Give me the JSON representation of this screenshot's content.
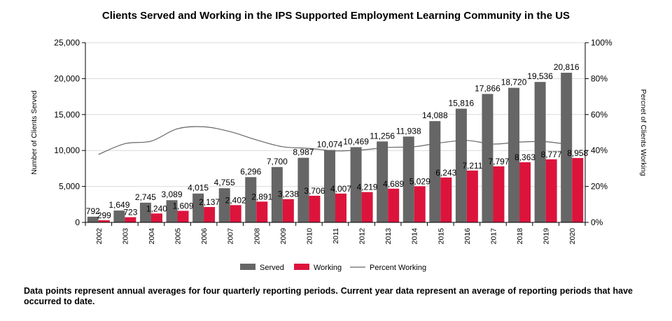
{
  "chart_data": {
    "type": "bar",
    "title": "Clients Served and Working in the IPS Supported Employment Learning Community in the US",
    "ylabel": "Number of Clients Served",
    "y2label": "Percnet of Clients Working",
    "ylim": [
      0,
      25000
    ],
    "y2lim": [
      0,
      100
    ],
    "yticks": [
      "0",
      "5,000",
      "10,000",
      "15,000",
      "20,000",
      "25,000"
    ],
    "y2ticks": [
      "0%",
      "20%",
      "40%",
      "60%",
      "80%",
      "100%"
    ],
    "grid": true,
    "legend_position": "bottom",
    "categories": [
      "2002",
      "2003",
      "2004",
      "2005",
      "2006",
      "2007",
      "2008",
      "2009",
      "2010",
      "2011",
      "2012",
      "2013",
      "2014",
      "2015",
      "2016",
      "2017",
      "2018",
      "2019",
      "2020"
    ],
    "series": [
      {
        "name": "Served",
        "color": "#666666",
        "axis": "left",
        "values": [
          792,
          1649,
          2745,
          3089,
          4015,
          4755,
          6296,
          7700,
          8987,
          10074,
          10469,
          11256,
          11938,
          14088,
          15816,
          17866,
          18720,
          19536,
          20816
        ],
        "labels": [
          "792",
          "1,649",
          "2,745",
          "3,089",
          "4,015",
          "4,755",
          "6,296",
          "7,700",
          "8,987",
          "10,074",
          "10,469",
          "11,256",
          "11,938",
          "14,088",
          "15,816",
          "17,866",
          "18,720",
          "19,536",
          "20,816"
        ]
      },
      {
        "name": "Working",
        "color": "#dc143c",
        "axis": "left",
        "values": [
          299,
          723,
          1240,
          1609,
          2137,
          2402,
          2891,
          3238,
          3706,
          4007,
          4219,
          4689,
          5029,
          6243,
          7211,
          7797,
          8363,
          8777,
          8958
        ],
        "labels": [
          "299",
          "723",
          "1,240",
          "1,609",
          "2,137",
          "2,402",
          "2,891",
          "3,238",
          "3,706",
          "4,007",
          "4,219",
          "4,689",
          "5,029",
          "6,243",
          "7,211",
          "7,797",
          "8,363",
          "8,777",
          "8,958"
        ]
      },
      {
        "name": "Percent Working",
        "color": "#666666",
        "axis": "right",
        "type": "line",
        "values": [
          37.8,
          43.8,
          45.2,
          52.1,
          53.2,
          50.5,
          45.9,
          42.1,
          41.2,
          39.8,
          40.3,
          41.7,
          42.1,
          44.3,
          45.6,
          43.6,
          44.7,
          44.9,
          43.0
        ]
      }
    ]
  },
  "footnote": "Data points represent annual averages for four quarterly reporting periods. Current year data represent an average of reporting periods that have occurred to date."
}
